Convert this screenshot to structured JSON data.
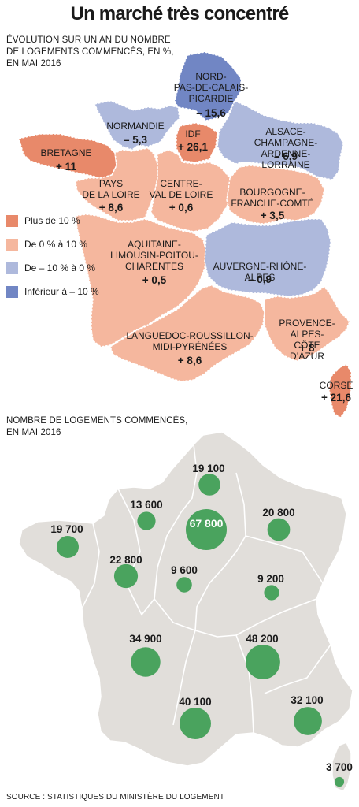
{
  "title": "Un marché très concentré",
  "map1": {
    "subtitle": "ÉVOLUTION SUR UN AN DU NOMBRE\nDE LOGEMENTS COMMENCÉS, EN %,\nEN MAI 2016",
    "legend": [
      {
        "label": "Plus de 10 %",
        "color": "#e8896a"
      },
      {
        "label": "De 0 % à 10 %",
        "color": "#f5b79e"
      },
      {
        "label": "De – 10 % à 0 %",
        "color": "#aeb9dc"
      },
      {
        "label": "Inférieur à – 10 %",
        "color": "#7186c4"
      }
    ],
    "regions": [
      {
        "name": "NORD-\nPAS-DE-CALAIS-\nPICARDIE",
        "value": "– 15,6",
        "change_pct": -15.6,
        "color": "#7186c4"
      },
      {
        "name": "NORMANDIE",
        "value": "– 5,3",
        "change_pct": -5.3,
        "color": "#aeb9dc"
      },
      {
        "name": "IDF",
        "value": "+ 26,1",
        "change_pct": 26.1,
        "color": "#e8896a"
      },
      {
        "name": "ALSACE-CHAMPAGNE-\nARDENNE-LORRAINE",
        "value": "– 6,9",
        "change_pct": -6.9,
        "color": "#aeb9dc"
      },
      {
        "name": "BRETAGNE",
        "value": "+ 11",
        "change_pct": 11,
        "color": "#e8896a"
      },
      {
        "name": "PAYS\nDE LA LOIRE",
        "value": "+ 8,6",
        "change_pct": 8.6,
        "color": "#f5b79e"
      },
      {
        "name": "CENTRE-\nVAL DE LOIRE",
        "value": "+ 0,6",
        "change_pct": 0.6,
        "color": "#f5b79e"
      },
      {
        "name": "BOURGOGNE-\nFRANCHE-COMTÉ",
        "value": "+ 3,5",
        "change_pct": 3.5,
        "color": "#f5b79e"
      },
      {
        "name": "AQUITAINE-\nLIMOUSIN-POITOU-\nCHARENTES",
        "value": "+ 0,5",
        "change_pct": 0.5,
        "color": "#f5b79e"
      },
      {
        "name": "AUVERGNE-RHÔNE-ALPES",
        "value": "– 0,9",
        "change_pct": -0.9,
        "color": "#aeb9dc"
      },
      {
        "name": "LANGUEDOC-ROUSSILLON-\nMIDI-PYRÉNÉES",
        "value": "+ 8,6",
        "change_pct": 8.6,
        "color": "#f5b79e"
      },
      {
        "name": "PROVENCE-ALPES-\nCÔTE D’AZUR",
        "value": "+ 8",
        "change_pct": 8,
        "color": "#f5b79e"
      },
      {
        "name": "CORSE",
        "value": "+ 21,6",
        "change_pct": 21.6,
        "color": "#e8896a"
      }
    ]
  },
  "map2": {
    "subtitle": "NOMBRE DE LOGEMENTS COMMENCÉS,\nEN MAI 2016",
    "map_color": "#e1deda",
    "bubble_color": "#4aa35e",
    "bubbles": [
      {
        "label": "19 100",
        "value": 19100
      },
      {
        "label": "13 600",
        "value": 13600
      },
      {
        "label": "67 800",
        "value": 67800
      },
      {
        "label": "20 800",
        "value": 20800
      },
      {
        "label": "19 700",
        "value": 19700
      },
      {
        "label": "22 800",
        "value": 22800
      },
      {
        "label": "9 600",
        "value": 9600
      },
      {
        "label": "9 200",
        "value": 9200
      },
      {
        "label": "34 900",
        "value": 34900
      },
      {
        "label": "48 200",
        "value": 48200
      },
      {
        "label": "40 100",
        "value": 40100
      },
      {
        "label": "32 100",
        "value": 32100
      },
      {
        "label": "3 700",
        "value": 3700
      }
    ]
  },
  "source": "SOURCE : STATISTIQUES DU MINISTÈRE DU LOGEMENT"
}
